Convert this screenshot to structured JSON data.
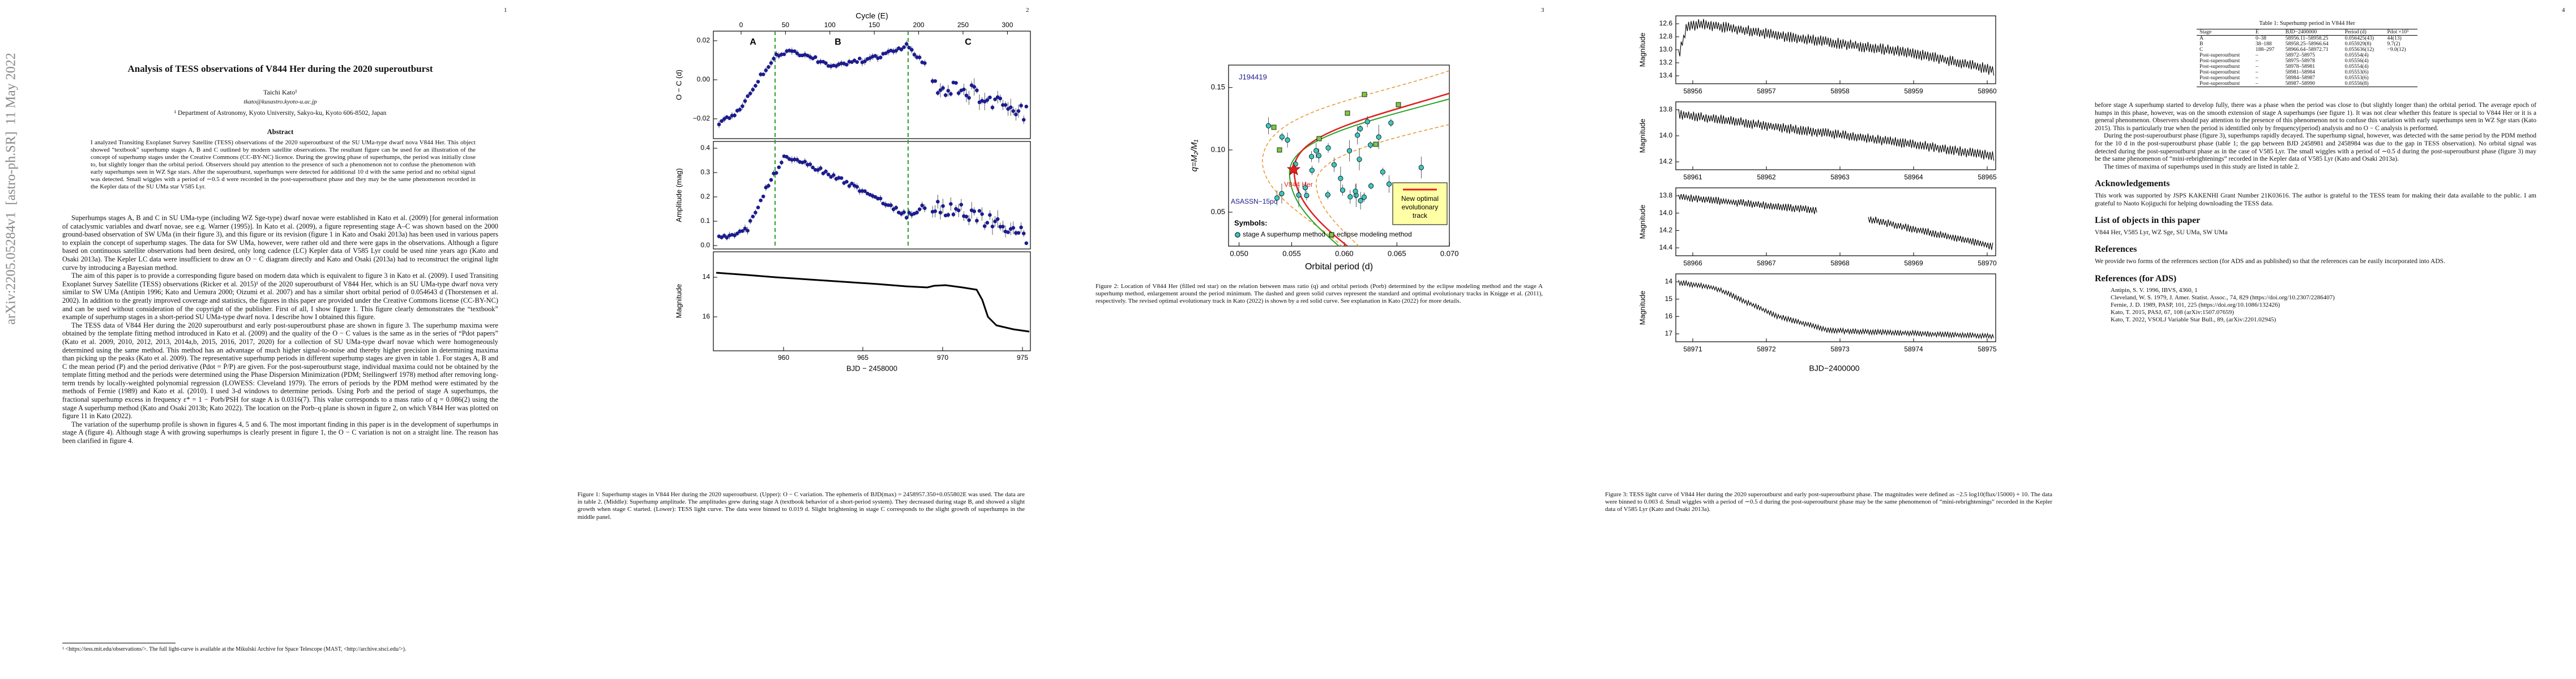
{
  "sidebar": "arXiv:2205.05284v1  [astro-ph.SR]  11 May 2022",
  "page_numbers": [
    "1",
    "2",
    "3",
    "4"
  ],
  "page1": {
    "title": "Analysis of TESS observations of V844 Her during the 2020 superoutburst",
    "author": "Taichi Kato¹",
    "email": "tkato@kusastro.kyoto-u.ac.jp",
    "affiliation": "¹ Department of Astronomy, Kyoto University, Sakyo-ku, Kyoto 606-8502, Japan",
    "abstract_heading": "Abstract",
    "abstract": "I analyzed Transiting Exoplanet Survey Satellite (TESS) observations of the 2020 superoutburst of the SU UMa-type dwarf nova V844 Her. This object showed “textbook” superhump stages A, B and C outlined by modern satellite observations. The resultant figure can be used for an illustration of the concept of superhump stages under the Creative Commons (CC-BY-NC) licence. During the growing phase of superhumps, the period was initially close to, but slightly longer than the orbital period. Observers should pay attention to the presence of such a phenomenon not to confuse the phenomenon with early superhumps seen in WZ Sge stars. After the superoutburst, superhumps were detected for additional 10 d with the same period and no orbital signal was detected. Small wiggles with a period of ∼0.5 d were recorded in the post-superoutburst phase and they may be the same phenomenon recorded in the Kepler data of the SU UMa star V585 Lyr.",
    "body": [
      "Superhumps stages A, B and C in SU UMa-type (including WZ Sge-type) dwarf novae were established in Kato et al. (2009) [for general information of cataclysmic variables and dwarf novae, see e.g. Warner (1995)]. In Kato et al. (2009), a figure representing stage A–C was shown based on the 2000 ground-based observation of SW UMa (in their figure 3), and this figure or its revision (figure 1 in Kato and Osaki 2013a) has been used in various papers to explain the concept of superhump stages. The data for SW UMa, however, were rather old and there were gaps in the observations. Although a figure based on continuous satellite observations had been desired, only long cadence (LC) Kepler data of V585 Lyr could be used nine years ago (Kato and Osaki 2013a). The Kepler LC data were insufficient to draw an O − C diagram directly and Kato and Osaki (2013a) had to reconstruct the original light curve by introducing a Bayesian method.",
      "The aim of this paper is to provide a corresponding figure based on modern data which is equivalent to figure 3 in Kato et al. (2009). I used Transiting Exoplanet Survey Satellite (TESS) observations (Ricker et al. 2015)¹ of the 2020 superoutburst of V844 Her, which is an SU UMa-type dwarf nova very similar to SW UMa (Antipin 1996; Kato and Uemura 2000; Oizumi et al. 2007) and has a similar short orbital period of 0.054643 d (Thorstensen et al. 2002). In addition to the greatly improved coverage and statistics, the figures in this paper are provided under the Creative Commons license (CC-BY-NC) and can be used without consideration of the copyright of the publisher. First of all, I show figure 1. This figure clearly demonstrates the “textbook” example of superhump stages in a short-period SU UMa-type dwarf nova. I describe how I obtained this figure.",
      "The TESS data of V844 Her during the 2020 superoutburst and early post-superoutburst phase are shown in figure 3. The superhump maxima were obtained by the template fitting method introduced in Kato et al. (2009) and the quality of the O − C values is the same as in the series of “Pdot papers” (Kato et al. 2009, 2010, 2012, 2013, 2014a,b, 2015, 2016, 2017, 2020) for a collection of SU UMa-type dwarf novae which were homogeneously determined using the same method. This method has an advantage of much higher signal-to-noise and thereby higher precision in determining maxima than picking up the peaks (Kato et al. 2009). The representative superhump periods in different superhump stages are given in table 1. For stages A, B and C the mean period (P) and the period derivative (Pdot = Ṗ/P) are given. For the post-superoutburst stage, individual maxima could not be obtained by the template fitting method and the periods were determined using the Phase Dispersion Minimization (PDM; Stellingwerf 1978) method after removing long-term trends by locally-weighted polynomial regression (LOWESS: Cleveland 1979). The errors of periods by the PDM method were estimated by the methods of Fernie (1989) and Kato et al. (2010). I used 3-d windows to determine periods. Using Porb and the period of stage A superhumps, the fractional superhump excess in frequency ε* = 1 − Porb/PSH for stage A is 0.0316(7). This value corresponds to a mass ratio of q = 0.086(2) using the stage A superhump method (Kato and Osaki 2013b; Kato 2022). The location on the Porb–q plane is shown in figure 2, on which V844 Her was plotted on figure 11 in Kato (2022).",
      "The variation of the superhump profile is shown in figures 4, 5 and 6. The most important finding in this paper is in the development of superhumps in stage A (figure 4). Although stage A with growing superhumps is clearly present in figure 1, the O − C variation is not on a straight line. The reason has been clarified in figure 4."
    ],
    "footnote": "¹ <https://tess.mit.edu/observations/>. The full light-curve is available at the Mikulski Archive for Space Telescope (MAST, <http://archive.stsci.edu/>)."
  },
  "figure1": {
    "top_axis_label": "Cycle (E)",
    "top_ticks": [
      "0",
      "50",
      "100",
      "150",
      "200",
      "250",
      "300"
    ],
    "stage_labels": [
      "A",
      "B",
      "C"
    ],
    "panels": [
      {
        "ylabel": "O − C (d)",
        "yticks": [
          "0.02",
          "0.00",
          "−0.02"
        ]
      },
      {
        "ylabel": "Amplitude (mag)",
        "yticks": [
          "0.4",
          "0.3",
          "0.2",
          "0.1",
          "0.0"
        ]
      },
      {
        "ylabel": "Magnitude",
        "yticks": [
          "14",
          "16"
        ]
      }
    ],
    "xticks": [
      "960",
      "965",
      "970",
      "975"
    ],
    "xlabel": "BJD − 2458000",
    "caption": "Figure 1: Superhump stages in V844 Her during the 2020 superoutburst. (Upper): O − C variation. The ephemeris of BJD(max) = 2458957.350+0.055802E was used. The data are in table 2. (Middle): Superhump amplitude. The amplitudes grew during stage A (textbook behavior of a short-period system). They decreased during stage B, and showed a slight growth when stage C started. (Lower): TESS light curve. The data were binned to 0.019 d. Slight brightening in stage C corresponds to the slight growth of superhumps in the middle panel."
  },
  "figure2": {
    "xlabel": "Orbital period (d)",
    "ylabel": "q=M₂/M₁",
    "xticks": [
      "0.050",
      "0.055",
      "0.060",
      "0.065",
      "0.070"
    ],
    "yticks": [
      "0.15",
      "0.10",
      "0.05"
    ],
    "labels": [
      "J194419",
      "V844 Her",
      "ASASSN−15po"
    ],
    "box_lines": [
      "New optimal",
      "evolutionary",
      "track"
    ],
    "legend_title": "Symbols:",
    "legend": [
      "stage A superhump method",
      "eclipse modeling method"
    ],
    "caption": "Figure 2: Location of V844 Her (filled red star) on the relation between mass ratio (q) and orbital periods (Porb) determined by the eclipse modeling method and the stage A superhump method, enlargement around the period minimum. The dashed and green solid curves represent the standard and optimal evolutionary tracks in Knigge et al. (2011), respectively. The revised optimal evolutionary track in Kato (2022) is shown by a red solid curve. See explanation in Kato (2022) for more details."
  },
  "figure3": {
    "ylabel": "Magnitude",
    "panels": [
      {
        "xticks": [
          "58956",
          "58957",
          "58958",
          "58959",
          "58960"
        ],
        "yticks": [
          "12.6",
          "12.8",
          "13.0",
          "13.2",
          "13.4"
        ]
      },
      {
        "xticks": [
          "58961",
          "58962",
          "58963",
          "58964",
          "58965"
        ],
        "yticks": [
          "13.8",
          "14.0",
          "14.2"
        ]
      },
      {
        "xticks": [
          "58966",
          "58967",
          "58968",
          "58969",
          "58970"
        ],
        "yticks": [
          "13.8",
          "14.0",
          "14.2",
          "14.4"
        ]
      },
      {
        "xticks": [
          "58971",
          "58972",
          "58973",
          "58974",
          "58975"
        ],
        "yticks": [
          "14",
          "15",
          "16",
          "17"
        ]
      }
    ],
    "xlabel": "BJD−2400000",
    "caption": "Figure 3: TESS light curve of V844 Her during the 2020 superoutburst and early post-superoutburst phase. The magnitudes were defined as −2.5 log10(flux/15000) + 10. The data were binned to 0.003 d. Small wiggles with a period of ∼0.5 d during the post-superoutburst phase may be the same phenomenon of “mini-rebrightenings” recorded in the Kepler data of V585 Lyr (Kato and Osaki 2013a)."
  },
  "last_page": {
    "table": {
      "caption": "Table 1: Superhump period in V844 Her",
      "header": [
        "Stage",
        "E",
        "BJD−2400000",
        "Period (d)",
        "Pdot ×10⁵"
      ],
      "rows": [
        [
          "A",
          "0–38",
          "58956.11–58958.25",
          "0.056425(43)",
          "44(13)"
        ],
        [
          "B",
          "38–188",
          "58958.25–58966.64",
          "0.055929(8)",
          "9.7(2)"
        ],
        [
          "C",
          "188–297",
          "58966.64–58972.71",
          "0.055636(12)",
          "−9.0(12)"
        ],
        [
          "Post-superoutburst",
          "–",
          "58972–58975",
          "0.05554(4)"
        ],
        [
          "Post-superoutburst",
          "–",
          "58975–58978",
          "0.05556(4)"
        ],
        [
          "Post-superoutburst",
          "–",
          "58978–58981",
          "0.05554(4)"
        ],
        [
          "Post-superoutburst",
          "–",
          "58981–58984",
          "0.05553(6)"
        ],
        [
          "Post-superoutburst",
          "–",
          "58984–58987",
          "0.05553(6)"
        ],
        [
          "Post-superoutburst",
          "–",
          "58987–58990",
          "0.05556(8)"
        ]
      ]
    },
    "body": [
      "before stage A superhump started to develop fully, there was a phase when the period was close to (but slightly longer than) the orbital period. The average epoch of humps in this phase, however, was on the smooth extension of stage A superhumps (see figure 1). It was not clear whether this feature is special to V844 Her or it is a general phenomenon. Observers should pay attention to the presence of this phenomenon not to confuse this variation with early superhumps seen in WZ Sge stars (Kato 2015). This is particularly true when the period is identified only by frequency(period) analysis and no O − C analysis is performed.",
      "During the post-superoutburst phase (figure 3), superhumps rapidly decayed. The superhump signal, however, was detected with the same period by the PDM method for the 10 d in the post-superoutburst phase (table 1; the gap between BJD 2458981 and 2458984 was due to the gap in TESS observation). No orbital signal was detected during the post-superoutburst phase as in the case of V585 Lyr. The small wiggles with a period of ∼0.5 d during the post-superoutburst phase (figure 3) may be the same phenomenon of “mini-rebrightenings” recorded in the Kepler data of V585 Lyr (Kato and Osaki 2013a).",
      "The times of maxima of superhumps used in this study are listed in table 2."
    ],
    "sections": [
      {
        "heading": "Acknowledgements",
        "text": "This work was supported by JSPS KAKENHI Grant Number 21K03616. The author is grateful to the TESS team for making their data available to the public. I am grateful to Naoto Kojiguchi for helping downloading the TESS data."
      },
      {
        "heading": "List of objects in this paper",
        "text": "V844 Her, V585 Lyr, WZ Sge, SU UMa, SW UMa"
      },
      {
        "heading": "References",
        "text": "We provide two forms of the references section (for ADS and as published) so that the references can be easily incorporated into ADS."
      }
    ],
    "ref_heading": "References (for ADS)",
    "references": [
      "Antipin, S. V. 1996, IBVS, 4360, 1",
      "Cleveland, W. S. 1979, J. Amer. Statist. Assoc., 74, 829 (https://doi.org/10.2307/2286407)",
      "Fernie, J. D. 1989, PASP, 101, 225 (https://doi.org/10.1086/132426)",
      "Kato, T. 2015, PASJ, 67, 108 (arXiv:1507.07659)",
      "Kato, T. 2022, VSOLJ Variable Star Bull., 89, (arXiv:2201.02945)"
    ]
  }
}
